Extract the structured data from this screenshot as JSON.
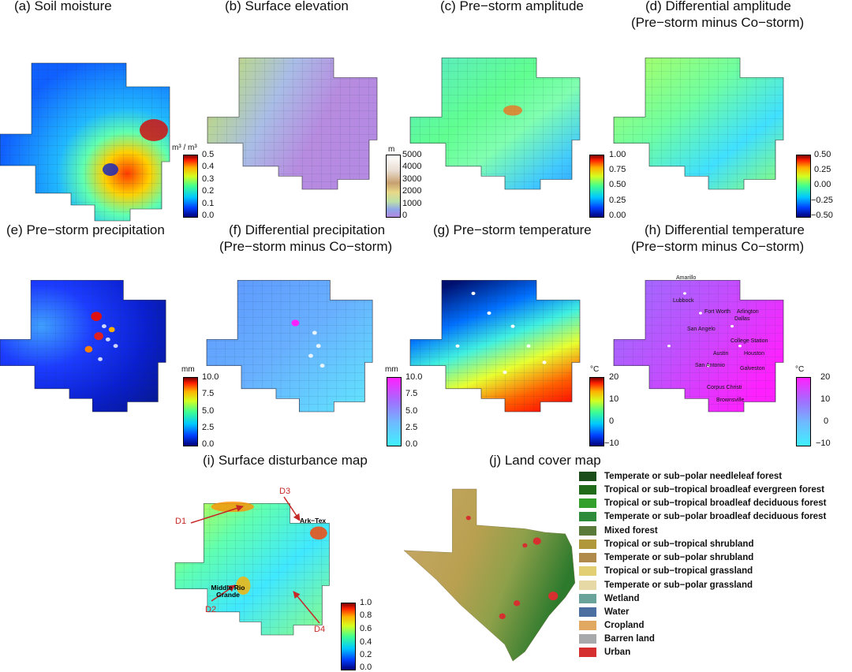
{
  "chart_data": [
    {
      "type": "heatmap",
      "panel": "a",
      "title": "(a) Soil moisture",
      "unit": "m³ / m³",
      "colorbar_ticks": [
        "0.5",
        "0.4",
        "0.3",
        "0.2",
        "0.1",
        "0.0"
      ],
      "colorbar_range": [
        0,
        0.5
      ],
      "palette": "rainbow"
    },
    {
      "type": "heatmap",
      "panel": "b",
      "title": "(b) Surface elevation",
      "unit": "m",
      "colorbar_ticks": [
        "5000",
        "4000",
        "3000",
        "2000",
        "1000",
        "0"
      ],
      "colorbar_range": [
        0,
        5000
      ],
      "palette": "terrain"
    },
    {
      "type": "heatmap",
      "panel": "c",
      "title": "(c) Pre−storm amplitude",
      "colorbar_ticks": [
        "1.00",
        "0.75",
        "0.50",
        "0.25",
        "0.00"
      ],
      "colorbar_range": [
        0,
        1
      ],
      "palette": "rainbow"
    },
    {
      "type": "heatmap",
      "panel": "d",
      "title_line1": "(d) Differential amplitude",
      "title_line2": "(Pre−storm minus Co−storm)",
      "colorbar_ticks": [
        "0.50",
        "0.25",
        "0.00",
        "−0.25",
        "−0.50"
      ],
      "colorbar_range": [
        -0.5,
        0.5
      ],
      "palette": "rainbow"
    },
    {
      "type": "heatmap",
      "panel": "e",
      "title": "(e) Pre−storm precipitation",
      "unit": "mm",
      "colorbar_ticks": [
        "10.0",
        "7.5",
        "5.0",
        "2.5",
        "0.0"
      ],
      "colorbar_range": [
        0,
        10
      ],
      "palette": "rainbow"
    },
    {
      "type": "heatmap",
      "panel": "f",
      "title_line1": "(f) Differential precipitation",
      "title_line2": "(Pre−storm minus Co−storm)",
      "unit": "mm",
      "colorbar_ticks": [
        "10.0",
        "7.5",
        "5.0",
        "2.5",
        "0.0"
      ],
      "colorbar_range": [
        0,
        10
      ],
      "palette": "cyan-magenta"
    },
    {
      "type": "heatmap",
      "panel": "g",
      "title": "(g) Pre−storm temperature",
      "unit": "°C",
      "colorbar_ticks": [
        "20",
        "10",
        "0",
        "−10"
      ],
      "colorbar_range": [
        -10,
        20
      ],
      "palette": "rainbow"
    },
    {
      "type": "heatmap",
      "panel": "h",
      "title_line1": "(h) Differential temperature",
      "title_line2": "(Pre−storm minus Co−storm)",
      "unit": "°C",
      "colorbar_ticks": [
        "20",
        "10",
        "0",
        "−10"
      ],
      "colorbar_range": [
        -10,
        20
      ],
      "palette": "cyan-magenta",
      "cities": [
        "Amarillo",
        "Lubbock",
        "Fort Worth",
        "Arlington",
        "Dallas",
        "San Angelo",
        "College Station",
        "Austin",
        "Houston",
        "San Antonio",
        "Galveston",
        "Corpus Christi",
        "Brownsville"
      ]
    },
    {
      "type": "heatmap",
      "panel": "i",
      "title": "(i) Surface disturbance map",
      "colorbar_ticks": [
        "1.0",
        "0.8",
        "0.6",
        "0.4",
        "0.2",
        "0.0"
      ],
      "colorbar_range": [
        0,
        1
      ],
      "palette": "rainbow",
      "annotations": [
        {
          "label": "D1"
        },
        {
          "label": "D2"
        },
        {
          "label": "D3"
        },
        {
          "label": "D4"
        },
        {
          "label": "Ark−Tex"
        },
        {
          "label": "Middle Rio Grande"
        }
      ]
    },
    {
      "type": "heatmap",
      "panel": "j",
      "title": "(j) Land cover map",
      "legend": [
        {
          "label": "Temperate or sub−polar needleleaf forest",
          "color": "#1b4d1b"
        },
        {
          "label": "Tropical or sub−tropical broadleaf evergreen forest",
          "color": "#1f6b1a"
        },
        {
          "label": "Tropical or sub−tropical broadleaf deciduous forest",
          "color": "#33a02c"
        },
        {
          "label": "Temperate or sub−polar broadleaf deciduous forest",
          "color": "#2e8b3a"
        },
        {
          "label": "Mixed forest",
          "color": "#5a7a3a"
        },
        {
          "label": "Tropical or sub−tropical shrubland",
          "color": "#b0983a"
        },
        {
          "label": "Temperate or sub−polar shrubland",
          "color": "#b08a4a"
        },
        {
          "label": "Tropical or sub−tropical grassland",
          "color": "#e2cf73"
        },
        {
          "label": "Temperate or sub−polar grassland",
          "color": "#e6d9a6"
        },
        {
          "label": "Wetland",
          "color": "#6aa39a"
        },
        {
          "label": "Water",
          "color": "#4a6fa0"
        },
        {
          "label": "Cropland",
          "color": "#e0a860"
        },
        {
          "label": "Barren land",
          "color": "#a7a9ab"
        },
        {
          "label": "Urban",
          "color": "#d62f2f"
        }
      ]
    }
  ]
}
